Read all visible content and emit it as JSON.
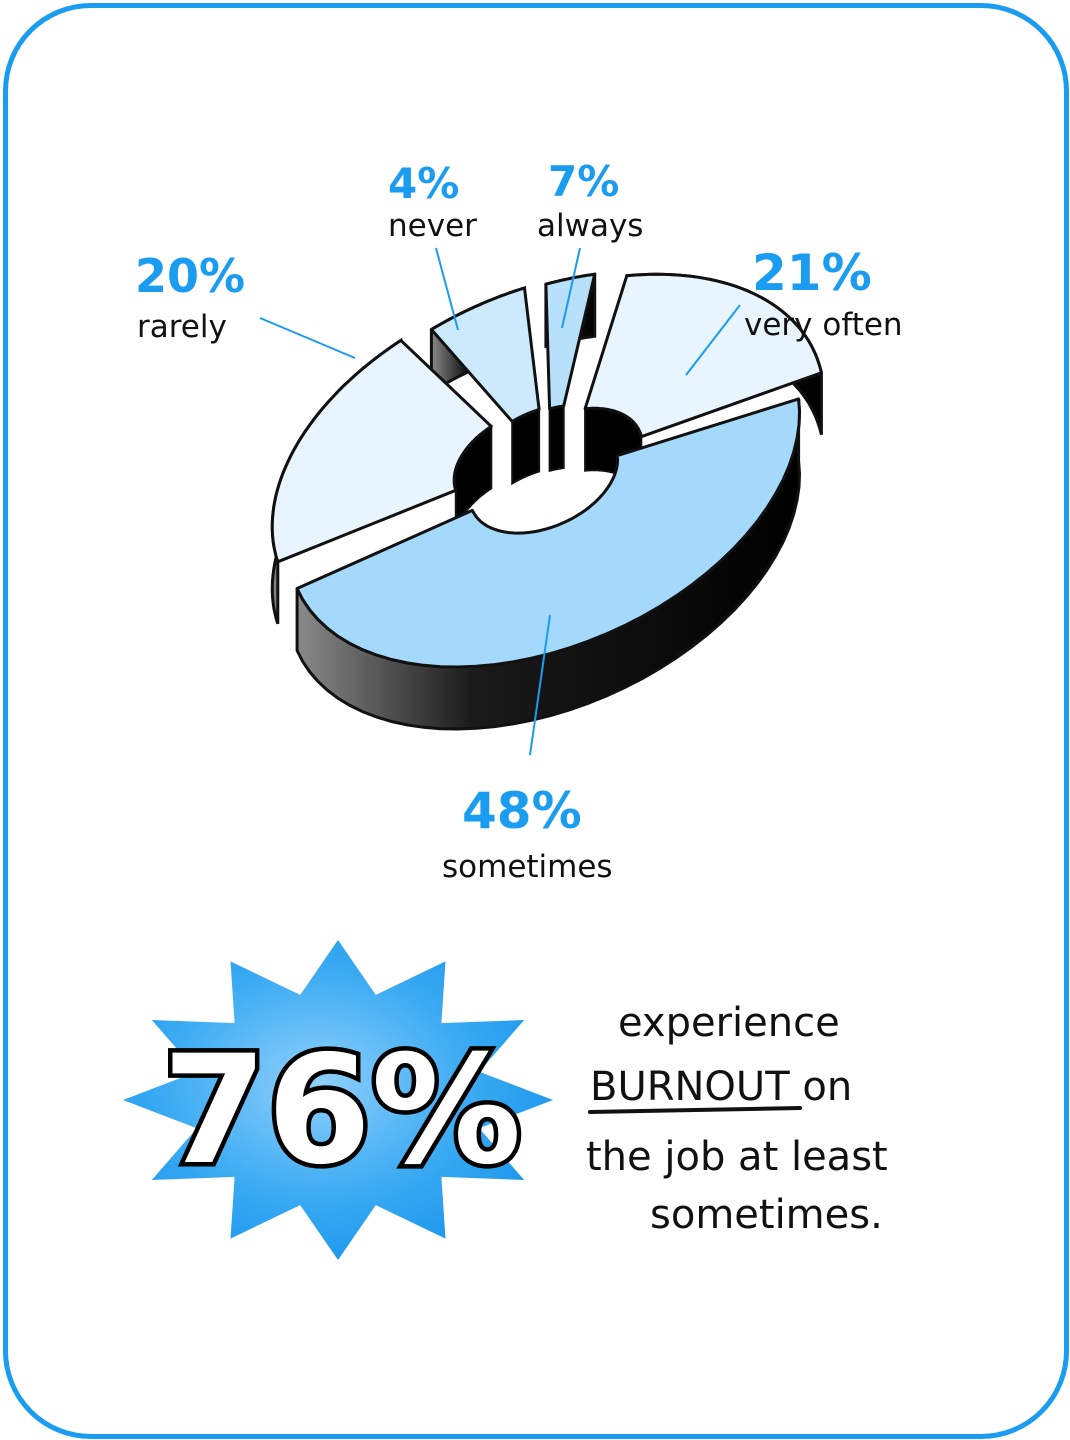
{
  "chart_data": {
    "type": "pie",
    "variant": "donut-3d",
    "slices": [
      {
        "label": "sometimes",
        "value": 48,
        "display": "48%"
      },
      {
        "label": "rarely",
        "value": 20,
        "display": "20%"
      },
      {
        "label": "never",
        "value": 4,
        "display": "4%"
      },
      {
        "label": "always",
        "value": 7,
        "display": "7%"
      },
      {
        "label": "very often",
        "value": 21,
        "display": "21%"
      }
    ],
    "unit": "%"
  },
  "callout": {
    "value": "76%",
    "text_lines": [
      "experience",
      "BURNOUT on",
      "the job at least",
      "sometimes."
    ],
    "emphasis": "BURNOUT"
  },
  "colors": {
    "accent": "#1a9cf0",
    "label_blue": "#1a9cf0",
    "slice_pale": "#e8f5ff",
    "slice_light": "#cdeafd",
    "slice_mid": "#b7e0fb",
    "slice_main": "#a4d9fb",
    "side_dark": "#000000",
    "outline": "#111111",
    "burst": "#33aaf0"
  }
}
